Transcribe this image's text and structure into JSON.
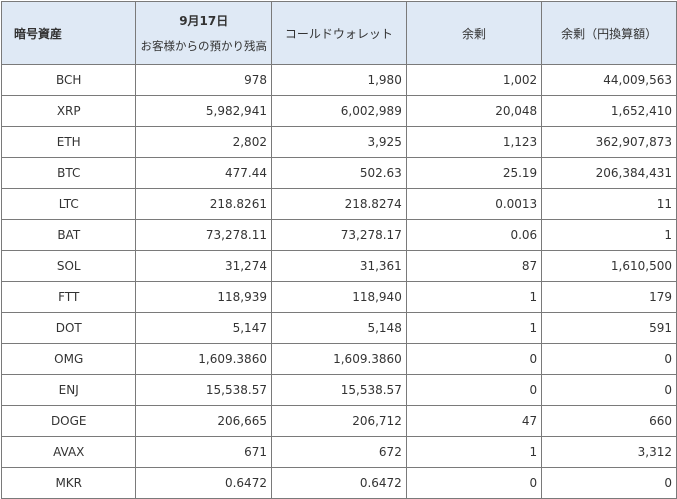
{
  "headers": {
    "asset": "暗号資産",
    "balance_line1": "9月17日",
    "balance_line2": "お客様からの預かり残高",
    "cold_wallet": "コールドウォレット",
    "surplus": "余剰",
    "surplus_jpy": "余剰（円換算額）"
  },
  "rows": [
    {
      "symbol": "BCH",
      "balance": "978",
      "cold": "1,980",
      "surplus": "1,002",
      "jpy": "44,009,563"
    },
    {
      "symbol": "XRP",
      "balance": "5,982,941",
      "cold": "6,002,989",
      "surplus": "20,048",
      "jpy": "1,652,410"
    },
    {
      "symbol": "ETH",
      "balance": "2,802",
      "cold": "3,925",
      "surplus": "1,123",
      "jpy": "362,907,873"
    },
    {
      "symbol": "BTC",
      "balance": "477.44",
      "cold": "502.63",
      "surplus": "25.19",
      "jpy": "206,384,431"
    },
    {
      "symbol": "LTC",
      "balance": "218.8261",
      "cold": "218.8274",
      "surplus": "0.0013",
      "jpy": "11"
    },
    {
      "symbol": "BAT",
      "balance": "73,278.11",
      "cold": "73,278.17",
      "surplus": "0.06",
      "jpy": "1"
    },
    {
      "symbol": "SOL",
      "balance": "31,274",
      "cold": "31,361",
      "surplus": "87",
      "jpy": "1,610,500"
    },
    {
      "symbol": "FTT",
      "balance": "118,939",
      "cold": "118,940",
      "surplus": "1",
      "jpy": "179"
    },
    {
      "symbol": "DOT",
      "balance": "5,147",
      "cold": "5,148",
      "surplus": "1",
      "jpy": "591"
    },
    {
      "symbol": "OMG",
      "balance": "1,609.3860",
      "cold": "1,609.3860",
      "surplus": "0",
      "jpy": "0"
    },
    {
      "symbol": "ENJ",
      "balance": "15,538.57",
      "cold": "15,538.57",
      "surplus": "0",
      "jpy": "0"
    },
    {
      "symbol": "DOGE",
      "balance": "206,665",
      "cold": "206,712",
      "surplus": "47",
      "jpy": "660"
    },
    {
      "symbol": "AVAX",
      "balance": "671",
      "cold": "672",
      "surplus": "1",
      "jpy": "3,312"
    },
    {
      "symbol": "MKR",
      "balance": "0.6472",
      "cold": "0.6472",
      "surplus": "0",
      "jpy": "0"
    }
  ],
  "colors": {
    "header_background": "#dfe9f5",
    "border": "#7a7a7a",
    "text": "#333333"
  }
}
